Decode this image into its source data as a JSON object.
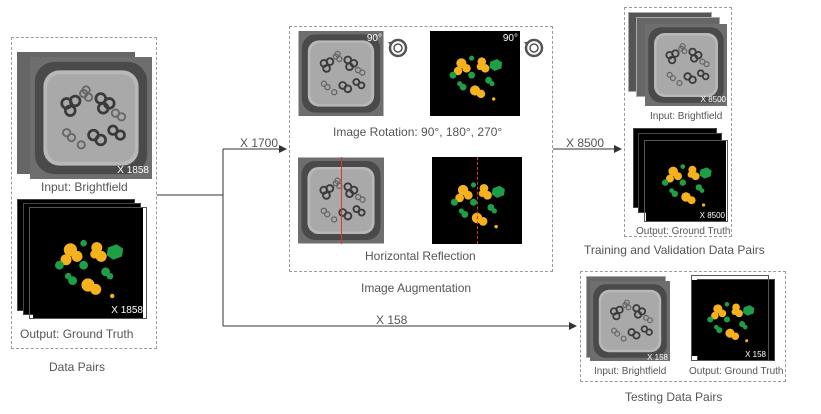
{
  "data_pairs": {
    "input_label": "Input: Brightfield",
    "input_count": "X 1858",
    "output_label": "Output: Ground Truth",
    "output_count": "X 1858",
    "caption": "Data Pairs"
  },
  "arrows": {
    "to_augmentation": "X 1700",
    "to_training": "X 8500",
    "to_testing": "X 158"
  },
  "augmentation": {
    "rotation_badge_left": "90°",
    "rotation_badge_right": "90°",
    "rotation_label": "Image Rotation: 90°, 180°, 270°",
    "reflection_label": "Horizontal Reflection",
    "caption": "Image Augmentation"
  },
  "training": {
    "input_label": "Input: Brightfield",
    "input_count": "X 8500",
    "output_label": "Output: Ground Truth",
    "output_count": "X 8500",
    "caption": "Training and Validation Data Pairs"
  },
  "testing": {
    "input_label": "Input: Brightfield",
    "input_count": "X 158",
    "output_label": "Output: Ground Truth",
    "output_count": "X 158",
    "caption": "Testing Data Pairs"
  },
  "colors": {
    "yellow": "#f5b21e",
    "green": "#1f9e48",
    "red_line": "#e0322e"
  }
}
